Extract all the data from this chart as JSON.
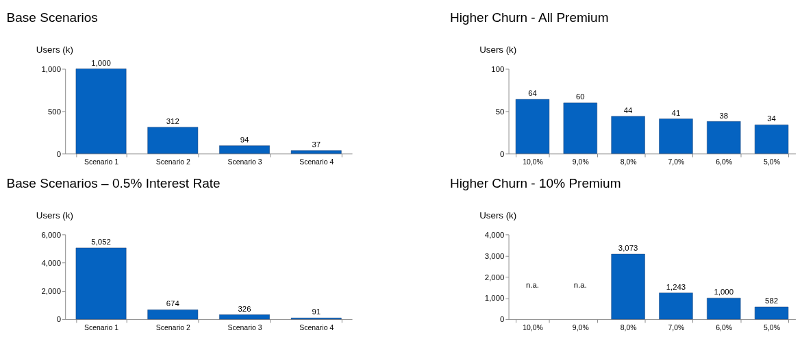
{
  "chart_data": [
    {
      "type": "bar",
      "title": "Base Scenarios",
      "ylabel": "Users (k)",
      "categories": [
        "Scenario 1",
        "Scenario 2",
        "Scenario 3",
        "Scenario 4"
      ],
      "values": [
        1000,
        312,
        94,
        37
      ],
      "value_labels": [
        "1,000",
        "312",
        "94",
        "37"
      ],
      "color": "#0563c1",
      "ylim": [
        0,
        1000
      ],
      "yticks": [
        0,
        500,
        {
          "value": 1000,
          "label": "1,000"
        }
      ],
      "grid": false
    },
    {
      "type": "bar",
      "title": "Higher Churn - All Premium",
      "ylabel": "Users (k)",
      "categories": [
        "10,0%",
        "9,0%",
        "8,0%",
        "7,0%",
        "6,0%",
        "5,0%"
      ],
      "values": [
        64,
        60,
        44,
        41,
        38,
        34
      ],
      "value_labels": [
        "64",
        "60",
        "44",
        "41",
        "38",
        "34"
      ],
      "color": "#0563c1",
      "ylim": [
        0,
        100
      ],
      "yticks": [
        0,
        50,
        100
      ],
      "grid": false
    },
    {
      "type": "bar",
      "title": "Base Scenarios – 0.5% Interest Rate",
      "ylabel": "Users (k)",
      "categories": [
        "Scenario 1",
        "Scenario 2",
        "Scenario 3",
        "Scenario 4"
      ],
      "values": [
        5052,
        674,
        326,
        91
      ],
      "value_labels": [
        "5,052",
        "674",
        "326",
        "91"
      ],
      "color": "#0563c1",
      "ylim": [
        0,
        6000
      ],
      "yticks": [
        0,
        {
          "value": 2000,
          "label": "2,000"
        },
        {
          "value": 4000,
          "label": "4,000"
        },
        {
          "value": 6000,
          "label": "6,000"
        }
      ],
      "grid": false
    },
    {
      "type": "bar",
      "title": "Higher Churn - 10% Premium",
      "ylabel": "Users (k)",
      "categories": [
        "10,0%",
        "9,0%",
        "8,0%",
        "7,0%",
        "6,0%",
        "5,0%"
      ],
      "values": [
        null,
        null,
        3073,
        1243,
        1000,
        582
      ],
      "value_labels": [
        "n.a.",
        "n.a.",
        "3,073",
        "1,243",
        "1,000",
        "582"
      ],
      "color": "#0563c1",
      "ylim": [
        0,
        4000
      ],
      "yticks": [
        0,
        {
          "value": 1000,
          "label": "1,000"
        },
        {
          "value": 2000,
          "label": "2,000"
        },
        {
          "value": 3000,
          "label": "3,000"
        },
        {
          "value": 4000,
          "label": "4,000"
        }
      ],
      "grid": false
    }
  ]
}
